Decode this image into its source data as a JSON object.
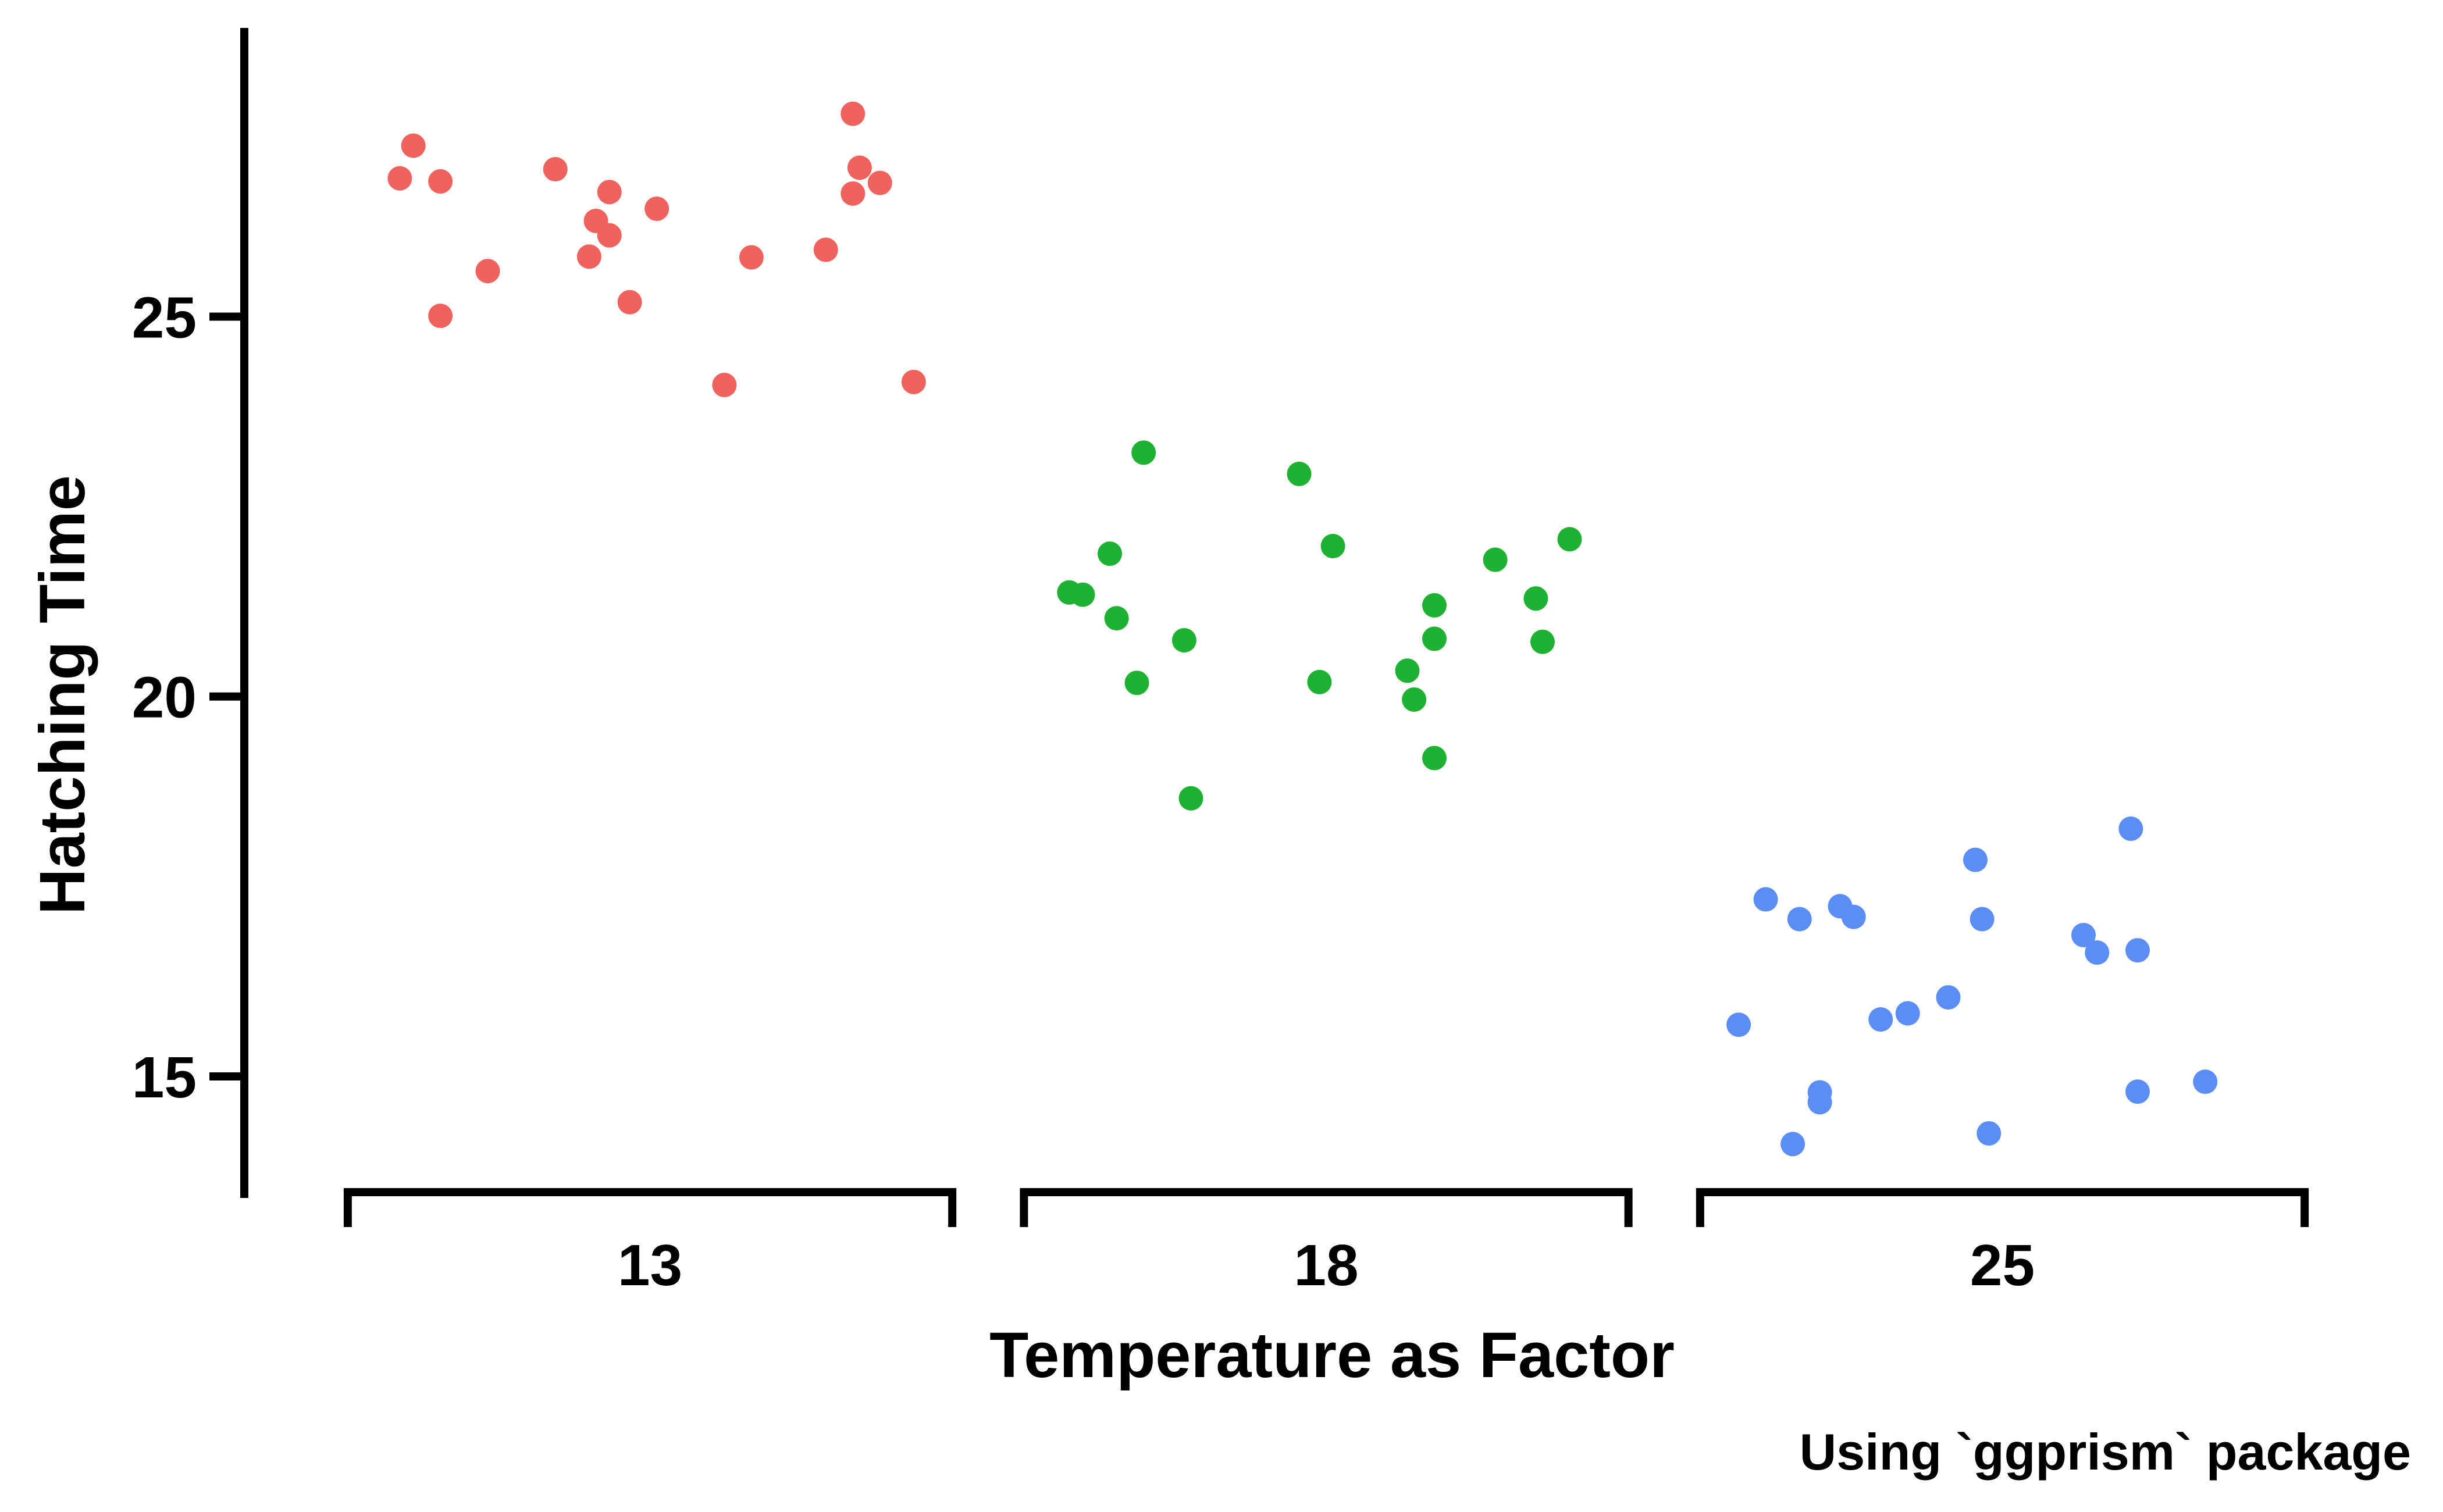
{
  "chart_data": {
    "type": "scatter",
    "xlabel": "Temperature as Factor",
    "ylabel": "Hatching Time",
    "caption": "Using `ggprism` package",
    "categories": [
      "13",
      "18",
      "25"
    ],
    "y_ticks": [
      "15",
      "20",
      "25"
    ],
    "ylim": [
      13.4,
      28.8
    ],
    "grid": false,
    "legend": "none",
    "colors": {
      "13": "#F0625E",
      "18": "#1EB132",
      "25": "#5B8DF5",
      "axis": "#000000",
      "background": "#FFFFFF"
    },
    "series": [
      {
        "category": "13",
        "points": [
          {
            "x": 0.63,
            "y": 26.82
          },
          {
            "x": 0.65,
            "y": 27.25
          },
          {
            "x": 0.69,
            "y": 26.78
          },
          {
            "x": 0.69,
            "y": 25.01
          },
          {
            "x": 0.76,
            "y": 25.6
          },
          {
            "x": 0.86,
            "y": 26.94
          },
          {
            "x": 0.91,
            "y": 25.79
          },
          {
            "x": 0.92,
            "y": 26.26
          },
          {
            "x": 0.94,
            "y": 26.07
          },
          {
            "x": 0.94,
            "y": 26.64
          },
          {
            "x": 0.97,
            "y": 25.19
          },
          {
            "x": 1.01,
            "y": 26.42
          },
          {
            "x": 1.11,
            "y": 24.1
          },
          {
            "x": 1.15,
            "y": 25.78
          },
          {
            "x": 1.26,
            "y": 25.88
          },
          {
            "x": 1.3,
            "y": 26.62
          },
          {
            "x": 1.3,
            "y": 27.67
          },
          {
            "x": 1.31,
            "y": 26.96
          },
          {
            "x": 1.34,
            "y": 26.76
          },
          {
            "x": 1.39,
            "y": 24.14
          }
        ]
      },
      {
        "category": "18",
        "points": [
          {
            "x": 1.62,
            "y": 21.37
          },
          {
            "x": 1.64,
            "y": 21.34
          },
          {
            "x": 1.68,
            "y": 21.88
          },
          {
            "x": 1.69,
            "y": 21.03
          },
          {
            "x": 1.72,
            "y": 20.18
          },
          {
            "x": 1.73,
            "y": 23.21
          },
          {
            "x": 1.79,
            "y": 20.74
          },
          {
            "x": 1.8,
            "y": 18.66
          },
          {
            "x": 1.96,
            "y": 22.93
          },
          {
            "x": 1.99,
            "y": 20.19
          },
          {
            "x": 2.01,
            "y": 21.98
          },
          {
            "x": 2.12,
            "y": 20.34
          },
          {
            "x": 2.13,
            "y": 19.96
          },
          {
            "x": 2.16,
            "y": 20.76
          },
          {
            "x": 2.16,
            "y": 19.19
          },
          {
            "x": 2.16,
            "y": 21.2
          },
          {
            "x": 2.25,
            "y": 21.8
          },
          {
            "x": 2.31,
            "y": 21.29
          },
          {
            "x": 2.32,
            "y": 20.72
          },
          {
            "x": 2.36,
            "y": 22.07
          }
        ]
      },
      {
        "category": "25",
        "points": [
          {
            "x": 2.61,
            "y": 15.68
          },
          {
            "x": 2.65,
            "y": 17.33
          },
          {
            "x": 2.69,
            "y": 14.11
          },
          {
            "x": 2.7,
            "y": 17.07
          },
          {
            "x": 2.73,
            "y": 14.79
          },
          {
            "x": 2.73,
            "y": 14.66
          },
          {
            "x": 2.76,
            "y": 17.24
          },
          {
            "x": 2.78,
            "y": 17.1
          },
          {
            "x": 2.82,
            "y": 15.75
          },
          {
            "x": 2.86,
            "y": 15.83
          },
          {
            "x": 2.92,
            "y": 16.04
          },
          {
            "x": 2.96,
            "y": 17.85
          },
          {
            "x": 2.97,
            "y": 17.07
          },
          {
            "x": 2.98,
            "y": 14.25
          },
          {
            "x": 3.12,
            "y": 16.86
          },
          {
            "x": 3.14,
            "y": 16.63
          },
          {
            "x": 3.19,
            "y": 18.26
          },
          {
            "x": 3.2,
            "y": 16.66
          },
          {
            "x": 3.2,
            "y": 14.8
          },
          {
            "x": 3.3,
            "y": 14.93
          }
        ]
      }
    ]
  }
}
